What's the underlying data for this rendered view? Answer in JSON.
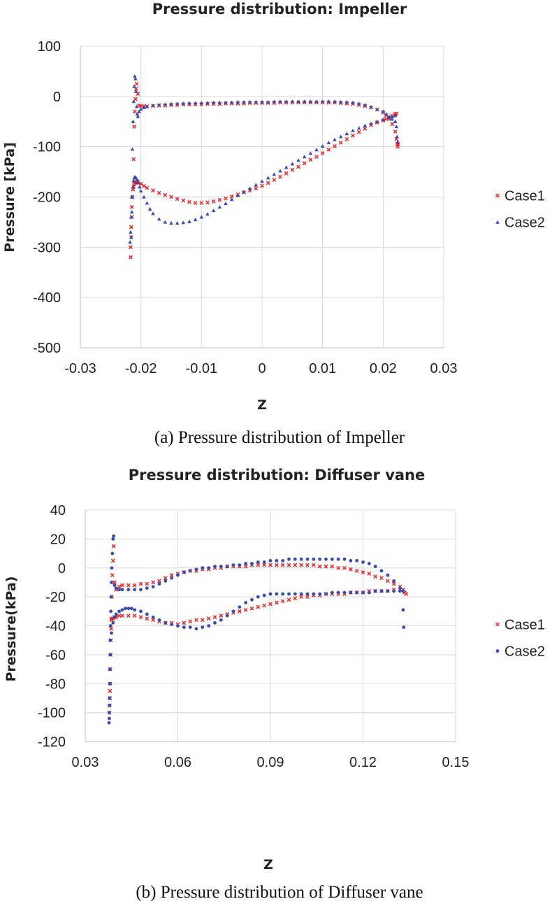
{
  "colors": {
    "case1": "#e8262a",
    "case2": "#3a4ba8",
    "grid": "#d9d9d9"
  },
  "captions": {
    "a": "(a)  Pressure  distribution  of  Impeller",
    "b": "(b)  Pressure  distribution  of  Diffuser  vane"
  },
  "chart_data": [
    {
      "type": "scatter",
      "title": "Pressure distribution: Impeller",
      "xlabel": "Z",
      "ylabel": "Pressure [kPa]",
      "xlim": [
        -0.03,
        0.03
      ],
      "ylim": [
        -500,
        100
      ],
      "x_ticks": [
        -0.03,
        -0.02,
        -0.01,
        0,
        0.01,
        0.02,
        0.03
      ],
      "y_ticks": [
        100,
        0,
        -100,
        -200,
        -300,
        -400,
        -500
      ],
      "x_tick_labels": [
        "-0.03",
        "-0.02",
        "-0.01",
        "0",
        "0.01",
        "0.02",
        "0.03"
      ],
      "y_tick_labels": [
        "100",
        "0",
        "-100",
        "-200",
        "-300",
        "-400",
        "-500"
      ],
      "grid": true,
      "legend": "right",
      "series": [
        {
          "name": "Case1",
          "marker": "x",
          "x": [
            -0.0217,
            -0.0217,
            -0.0216,
            -0.0216,
            -0.0215,
            -0.0215,
            -0.0214,
            -0.0213,
            -0.0212,
            -0.0211,
            -0.021,
            -0.0209,
            -0.0208,
            -0.0207,
            -0.0205,
            -0.0203,
            -0.02,
            -0.0195,
            -0.019,
            -0.018,
            -0.017,
            -0.016,
            -0.015,
            -0.014,
            -0.013,
            -0.012,
            -0.011,
            -0.01,
            -0.009,
            -0.008,
            -0.007,
            -0.006,
            -0.005,
            -0.004,
            -0.003,
            -0.002,
            -0.001,
            0.0,
            0.001,
            0.002,
            0.003,
            0.004,
            0.005,
            0.006,
            0.007,
            0.008,
            0.009,
            0.01,
            0.011,
            0.012,
            0.013,
            0.014,
            0.015,
            0.016,
            0.017,
            0.018,
            0.019,
            0.02,
            0.0205,
            0.021,
            0.0215,
            0.022,
            0.0222,
            0.0223,
            0.0224,
            0.0225,
            -0.0213,
            -0.0212,
            -0.0211,
            -0.021,
            -0.0208,
            -0.0206,
            -0.0205,
            -0.02,
            -0.0195,
            -0.019,
            -0.018,
            -0.017,
            -0.016,
            -0.015,
            -0.014,
            -0.013,
            -0.012,
            -0.011,
            -0.01,
            -0.009,
            -0.008,
            -0.007,
            -0.006,
            -0.005,
            -0.004,
            -0.003,
            -0.002,
            -0.001,
            0.0,
            0.001,
            0.002,
            0.003,
            0.004,
            0.005,
            0.006,
            0.007,
            0.008,
            0.009,
            0.01,
            0.011,
            0.012,
            0.013,
            0.014,
            0.015,
            0.016,
            0.017,
            0.018,
            0.019,
            0.02,
            0.0205,
            0.021,
            0.0215,
            0.022,
            0.0222
          ],
          "y": [
            -320,
            -300,
            -280,
            -260,
            -240,
            -220,
            -200,
            -185,
            -125,
            -60,
            -30,
            -5,
            15,
            25,
            5,
            -18,
            -19,
            -19,
            -20,
            -19,
            -18,
            -18,
            -17,
            -17,
            -16,
            -16,
            -16,
            -16,
            -15,
            -15,
            -15,
            -14,
            -14,
            -14,
            -14,
            -13,
            -13,
            -13,
            -13,
            -13,
            -12,
            -12,
            -12,
            -12,
            -12,
            -12,
            -12,
            -12,
            -12,
            -12,
            -13,
            -14,
            -15,
            -17,
            -19,
            -22,
            -26,
            -32,
            -38,
            -45,
            -55,
            -70,
            -85,
            -95,
            -100,
            -95,
            -185,
            -180,
            -175,
            -172,
            -170,
            -170,
            -171,
            -174,
            -178,
            -182,
            -187,
            -192,
            -196,
            -200,
            -204,
            -207,
            -210,
            -212,
            -212,
            -211,
            -209,
            -206,
            -203,
            -199,
            -195,
            -191,
            -187,
            -183,
            -178,
            -172,
            -166,
            -160,
            -153,
            -146,
            -140,
            -133,
            -126,
            -120,
            -113,
            -106,
            -99,
            -92,
            -85,
            -78,
            -71,
            -64,
            -57,
            -52,
            -48,
            -45,
            -42,
            -38,
            -35,
            -34
          ]
        },
        {
          "name": "Case2",
          "marker": "triangle",
          "x": [
            -0.0218,
            -0.0217,
            -0.0216,
            -0.0215,
            -0.0214,
            -0.0213,
            -0.0212,
            -0.0211,
            -0.021,
            -0.0209,
            -0.0208,
            -0.0207,
            -0.0206,
            -0.0205,
            -0.0203,
            -0.02,
            -0.0195,
            -0.019,
            -0.018,
            -0.017,
            -0.016,
            -0.015,
            -0.014,
            -0.013,
            -0.012,
            -0.011,
            -0.01,
            -0.009,
            -0.008,
            -0.007,
            -0.006,
            -0.005,
            -0.004,
            -0.003,
            -0.002,
            -0.001,
            0.0,
            0.001,
            0.002,
            0.003,
            0.004,
            0.005,
            0.006,
            0.007,
            0.008,
            0.009,
            0.01,
            0.011,
            0.012,
            0.013,
            0.014,
            0.015,
            0.016,
            0.017,
            0.018,
            0.019,
            0.02,
            0.0205,
            0.021,
            0.0215,
            0.022,
            0.0222,
            0.0223,
            0.0224,
            -0.0216,
            -0.0215,
            -0.0214,
            -0.0213,
            -0.0212,
            -0.0211,
            -0.021,
            -0.0208,
            -0.0206,
            -0.0204,
            -0.0202,
            -0.02,
            -0.0195,
            -0.019,
            -0.0185,
            -0.018,
            -0.017,
            -0.016,
            -0.015,
            -0.014,
            -0.013,
            -0.012,
            -0.011,
            -0.01,
            -0.009,
            -0.008,
            -0.007,
            -0.006,
            -0.005,
            -0.004,
            -0.003,
            -0.002,
            -0.001,
            0.0,
            0.001,
            0.002,
            0.003,
            0.004,
            0.005,
            0.006,
            0.007,
            0.008,
            0.009,
            0.01,
            0.011,
            0.012,
            0.013,
            0.014,
            0.015,
            0.016,
            0.017,
            0.018,
            0.019,
            0.02,
            0.021,
            0.0215,
            0.022
          ],
          "y": [
            -290,
            -270,
            -240,
            -200,
            -105,
            -50,
            -10,
            20,
            40,
            35,
            10,
            -20,
            -35,
            -40,
            -30,
            -25,
            -22,
            -20,
            -18,
            -17,
            -16,
            -15,
            -14,
            -14,
            -13,
            -13,
            -13,
            -13,
            -12,
            -12,
            -12,
            -12,
            -11,
            -11,
            -11,
            -11,
            -11,
            -11,
            -10,
            -10,
            -10,
            -10,
            -10,
            -10,
            -10,
            -10,
            -10,
            -10,
            -10,
            -11,
            -11,
            -12,
            -14,
            -17,
            -21,
            -26,
            -30,
            -35,
            -40,
            -45,
            -50,
            -60,
            -80,
            -90,
            -280,
            -230,
            -200,
            -180,
            -168,
            -162,
            -160,
            -162,
            -166,
            -172,
            -180,
            -188,
            -200,
            -212,
            -224,
            -233,
            -244,
            -250,
            -252,
            -252,
            -251,
            -249,
            -245,
            -240,
            -234,
            -227,
            -220,
            -213,
            -205,
            -197,
            -190,
            -183,
            -176,
            -169,
            -162,
            -155,
            -148,
            -141,
            -134,
            -127,
            -120,
            -113,
            -106,
            -99,
            -92,
            -86,
            -80,
            -74,
            -68,
            -63,
            -58,
            -54,
            -50,
            -46,
            -42,
            -40,
            -38
          ]
        }
      ]
    },
    {
      "type": "scatter",
      "title": "Pressure distribution: Diffuser vane",
      "xlabel": "Z",
      "ylabel": "Pressure(kPa)",
      "xlim": [
        0.03,
        0.15
      ],
      "ylim": [
        -120,
        40
      ],
      "x_ticks": [
        0.03,
        0.06,
        0.09,
        0.12,
        0.15
      ],
      "y_ticks": [
        40,
        20,
        0,
        -20,
        -40,
        -60,
        -80,
        -100,
        -120
      ],
      "x_tick_labels": [
        "0.03",
        "0.06",
        "0.09",
        "0.12",
        "0.15"
      ],
      "y_tick_labels": [
        "40",
        "20",
        "0",
        "-20",
        "-40",
        "-60",
        "-80",
        "-100",
        "-120"
      ],
      "grid": true,
      "legend": "right",
      "series": [
        {
          "name": "Case1",
          "marker": "x",
          "x": [
            0.0378,
            0.0379,
            0.038,
            0.038,
            0.0381,
            0.0381,
            0.0382,
            0.0383,
            0.0384,
            0.0385,
            0.0386,
            0.0388,
            0.039,
            0.0392,
            0.0395,
            0.04,
            0.041,
            0.042,
            0.044,
            0.046,
            0.048,
            0.05,
            0.052,
            0.054,
            0.056,
            0.058,
            0.06,
            0.062,
            0.064,
            0.066,
            0.068,
            0.07,
            0.072,
            0.074,
            0.076,
            0.078,
            0.08,
            0.082,
            0.084,
            0.086,
            0.088,
            0.09,
            0.092,
            0.094,
            0.096,
            0.098,
            0.1,
            0.102,
            0.104,
            0.106,
            0.108,
            0.11,
            0.112,
            0.114,
            0.116,
            0.118,
            0.12,
            0.122,
            0.124,
            0.126,
            0.128,
            0.13,
            0.132,
            0.133,
            0.1335,
            0.134,
            0.0385,
            0.039,
            0.0395,
            0.04,
            0.041,
            0.042,
            0.044,
            0.046,
            0.048,
            0.05,
            0.052,
            0.054,
            0.056,
            0.058,
            0.06,
            0.062,
            0.064,
            0.066,
            0.068,
            0.07,
            0.072,
            0.074,
            0.076,
            0.078,
            0.08,
            0.082,
            0.084,
            0.086,
            0.088,
            0.09,
            0.092,
            0.094,
            0.096,
            0.098,
            0.1,
            0.102,
            0.104,
            0.106,
            0.108,
            0.11,
            0.112,
            0.114,
            0.116,
            0.118,
            0.12,
            0.122,
            0.124,
            0.126,
            0.128,
            0.13,
            0.132,
            0.133
          ],
          "y": [
            -100,
            -95,
            -90,
            -85,
            -80,
            -70,
            -60,
            -50,
            -42,
            -35,
            -20,
            -5,
            5,
            15,
            -10,
            -15,
            -13,
            -12,
            -12,
            -12,
            -11,
            -11,
            -10,
            -9,
            -7,
            -5,
            -4,
            -3,
            -2,
            -2,
            -1,
            -1,
            0,
            0,
            1,
            1,
            1,
            1,
            2,
            2,
            2,
            2,
            2,
            2,
            2,
            2,
            2,
            2,
            2,
            1,
            1,
            1,
            0,
            0,
            -1,
            -2,
            -3,
            -4,
            -6,
            -7,
            -9,
            -11,
            -13,
            -15,
            -17,
            -18,
            -36,
            -35,
            -34,
            -34,
            -33,
            -33,
            -33,
            -33,
            -34,
            -35,
            -36,
            -37,
            -38,
            -38,
            -39,
            -38,
            -37,
            -36,
            -36,
            -35,
            -34,
            -33,
            -32,
            -31,
            -30,
            -29,
            -28,
            -27,
            -26,
            -25,
            -24,
            -23,
            -22,
            -21,
            -20,
            -20,
            -19,
            -19,
            -18,
            -18,
            -18,
            -18,
            -17,
            -17,
            -17,
            -16,
            -16,
            -16,
            -16,
            -15,
            -15,
            -15
          ]
        },
        {
          "name": "Case2",
          "marker": "dot",
          "x": [
            0.0377,
            0.0378,
            0.0378,
            0.0379,
            0.0379,
            0.038,
            0.038,
            0.0381,
            0.0381,
            0.0382,
            0.0383,
            0.0384,
            0.0385,
            0.0386,
            0.0388,
            0.039,
            0.0392,
            0.0395,
            0.04,
            0.041,
            0.042,
            0.044,
            0.046,
            0.048,
            0.05,
            0.052,
            0.054,
            0.056,
            0.058,
            0.06,
            0.062,
            0.064,
            0.066,
            0.068,
            0.07,
            0.072,
            0.074,
            0.076,
            0.078,
            0.08,
            0.082,
            0.084,
            0.086,
            0.088,
            0.09,
            0.092,
            0.094,
            0.096,
            0.098,
            0.1,
            0.102,
            0.104,
            0.106,
            0.108,
            0.11,
            0.112,
            0.114,
            0.116,
            0.118,
            0.12,
            0.122,
            0.124,
            0.126,
            0.128,
            0.13,
            0.132,
            0.133,
            0.1332,
            0.0385,
            0.039,
            0.0395,
            0.04,
            0.041,
            0.042,
            0.043,
            0.044,
            0.045,
            0.046,
            0.048,
            0.05,
            0.052,
            0.054,
            0.056,
            0.058,
            0.06,
            0.062,
            0.064,
            0.066,
            0.068,
            0.07,
            0.072,
            0.074,
            0.076,
            0.078,
            0.08,
            0.082,
            0.084,
            0.086,
            0.088,
            0.09,
            0.092,
            0.094,
            0.096,
            0.098,
            0.1,
            0.102,
            0.104,
            0.106,
            0.108,
            0.11,
            0.112,
            0.114,
            0.116,
            0.118,
            0.12,
            0.122,
            0.124,
            0.126,
            0.128,
            0.13,
            0.132,
            0.133
          ],
          "y": [
            -107,
            -104,
            -100,
            -95,
            -90,
            -80,
            -70,
            -60,
            -50,
            -40,
            -30,
            -20,
            -10,
            0,
            10,
            20,
            22,
            -12,
            -14,
            -15,
            -15,
            -15,
            -15,
            -15,
            -14,
            -13,
            -11,
            -9,
            -7,
            -5,
            -3,
            -2,
            -1,
            0,
            0,
            1,
            1,
            1,
            2,
            2,
            3,
            3,
            4,
            4,
            5,
            5,
            5,
            6,
            6,
            6,
            6,
            6,
            6,
            6,
            6,
            6,
            6,
            5,
            5,
            4,
            3,
            1,
            -2,
            -5,
            -9,
            -14,
            -29,
            -41,
            -45,
            -38,
            -34,
            -32,
            -30,
            -29,
            -28,
            -28,
            -28,
            -29,
            -30,
            -32,
            -34,
            -36,
            -38,
            -39,
            -40,
            -41,
            -41,
            -42,
            -41,
            -40,
            -38,
            -36,
            -33,
            -30,
            -27,
            -24,
            -22,
            -20,
            -19,
            -18,
            -18,
            -18,
            -18,
            -18,
            -18,
            -18,
            -18,
            -18,
            -18,
            -17,
            -17,
            -17,
            -17,
            -17,
            -17,
            -17,
            -16,
            -16,
            -16,
            -16,
            -16,
            -16
          ]
        }
      ]
    }
  ]
}
